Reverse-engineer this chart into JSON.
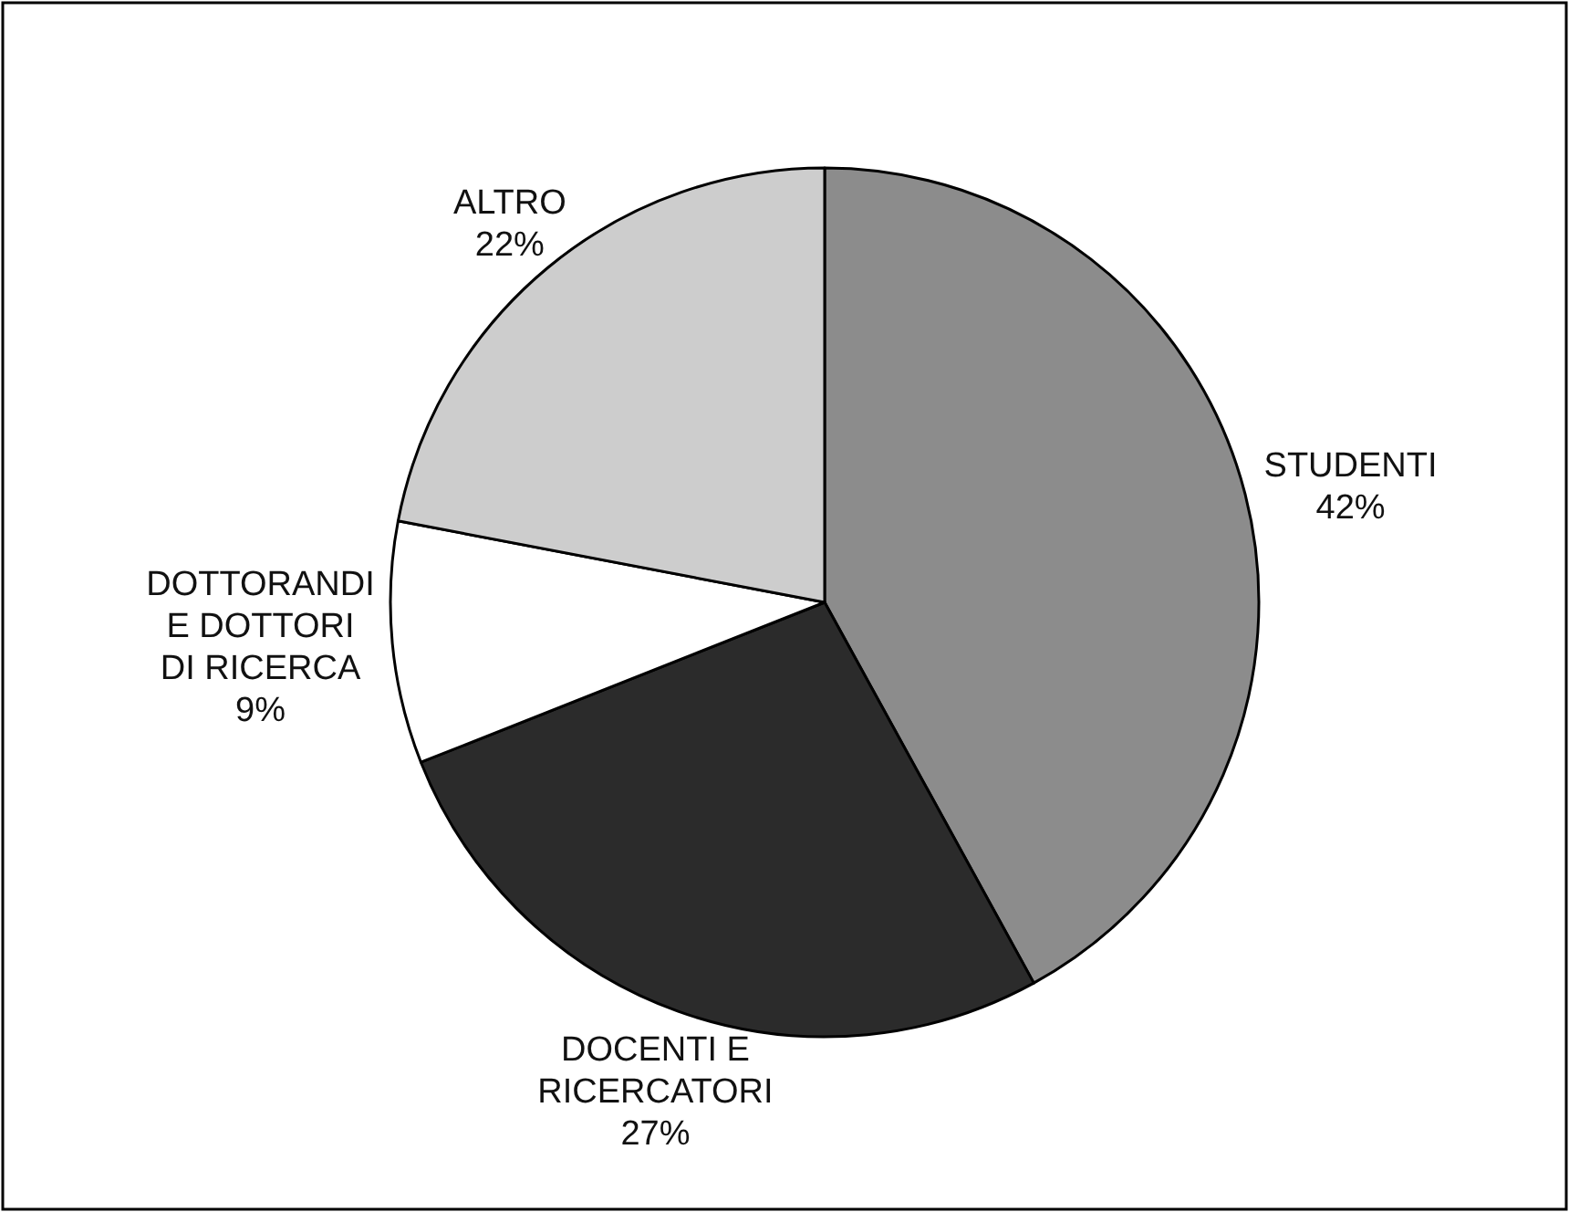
{
  "chart_data": {
    "type": "pie",
    "categories": [
      "STUDENTI",
      "DOCENTI E RICERCATORI",
      "DOTTORANDI E DOTTORI DI RICERCA",
      "ALTRO"
    ],
    "values": [
      42,
      27,
      9,
      22
    ],
    "colors": [
      "#8c8c8c",
      "#2b2b2b",
      "#ffffff",
      "#cdcdcd"
    ],
    "value_labels": [
      "42%",
      "27%",
      "9%",
      "22%"
    ]
  }
}
